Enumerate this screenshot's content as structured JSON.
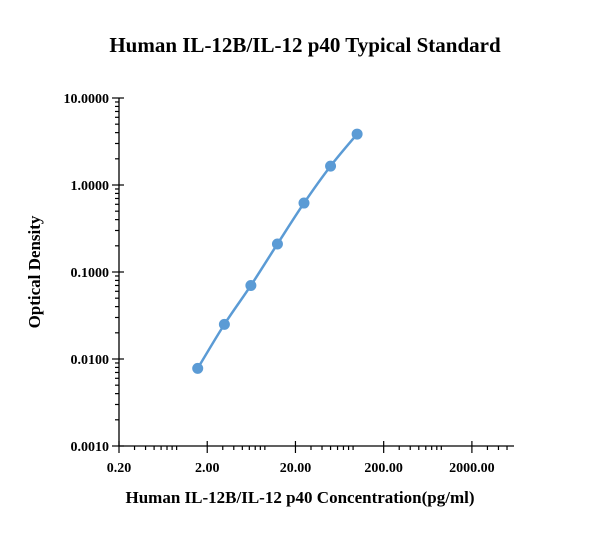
{
  "chart_data": {
    "type": "scatter",
    "title": "Human IL-12B/IL-12 p40 Typical Standard",
    "xlabel": "Human IL-12B/IL-12 p40 Concentration(pg/ml)",
    "ylabel": "Optical Density",
    "x_scale": "log",
    "y_scale": "log",
    "xlim": [
      0.2,
      6000
    ],
    "ylim": [
      0.001,
      10
    ],
    "x_tick_labels": [
      "0.20",
      "2.00",
      "20.00",
      "200.00",
      "2000.00"
    ],
    "x_tick_values": [
      0.2,
      2,
      20,
      200,
      2000
    ],
    "y_tick_labels": [
      "0.0010",
      "0.0100",
      "0.1000",
      "1.0000",
      "10.0000"
    ],
    "y_tick_values": [
      0.001,
      0.01,
      0.1,
      1,
      10
    ],
    "grid": false,
    "line_color": "#5b9bd5",
    "series": [
      {
        "x": [
          1.56,
          3.13,
          6.25,
          12.5,
          25,
          50,
          100
        ],
        "y": [
          0.0078,
          0.025,
          0.07,
          0.21,
          0.62,
          1.65,
          3.85
        ]
      }
    ]
  }
}
